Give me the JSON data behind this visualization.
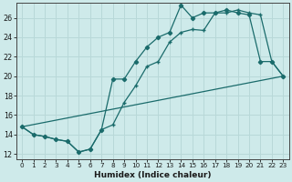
{
  "xlabel": "Humidex (Indice chaleur)",
  "bg_color": "#ceeaea",
  "grid_color": "#b8d8d8",
  "line_color": "#1a6b6b",
  "xlim": [
    -0.5,
    23.5
  ],
  "ylim": [
    11.5,
    27.5
  ],
  "yticks": [
    12,
    14,
    16,
    18,
    20,
    22,
    24,
    26
  ],
  "xticks": [
    0,
    1,
    2,
    3,
    4,
    5,
    6,
    7,
    8,
    9,
    10,
    11,
    12,
    13,
    14,
    15,
    16,
    17,
    18,
    19,
    20,
    21,
    22,
    23
  ],
  "line1_x": [
    0,
    1,
    2,
    3,
    4,
    5,
    6,
    7,
    8,
    9,
    10,
    11,
    12,
    13,
    14,
    15,
    16,
    17,
    18,
    19,
    20,
    21,
    22,
    23
  ],
  "line1_y": [
    14.8,
    14.0,
    13.8,
    13.5,
    13.3,
    12.2,
    12.5,
    14.5,
    15.0,
    17.3,
    19.0,
    21.0,
    21.5,
    23.5,
    24.5,
    24.8,
    24.7,
    26.5,
    26.5,
    26.8,
    26.5,
    26.3,
    21.5,
    20.0
  ],
  "line2_x": [
    0,
    1,
    2,
    3,
    4,
    5,
    6,
    7,
    8,
    9,
    10,
    11,
    12,
    13,
    14,
    15,
    16,
    17,
    18,
    19,
    20,
    21,
    22,
    23
  ],
  "line2_y": [
    14.8,
    14.0,
    13.8,
    13.5,
    13.3,
    12.2,
    12.5,
    14.5,
    19.7,
    19.7,
    21.5,
    23.0,
    24.0,
    24.5,
    27.3,
    26.0,
    26.5,
    26.5,
    26.8,
    26.5,
    26.3,
    21.5,
    21.5,
    20.0
  ],
  "line3_x": [
    0,
    23
  ],
  "line3_y": [
    14.8,
    20.0
  ]
}
